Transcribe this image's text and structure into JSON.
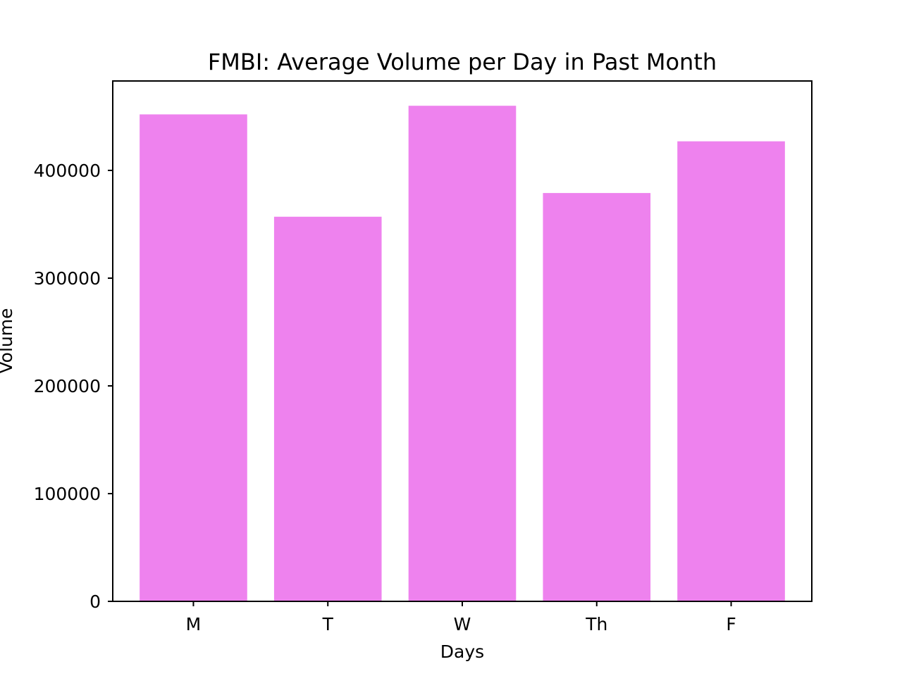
{
  "chart_data": {
    "type": "bar",
    "title": "FMBI: Average Volume per Day in Past Month",
    "xlabel": "Days",
    "ylabel": "Volume",
    "categories": [
      "M",
      "T",
      "W",
      "Th",
      "F"
    ],
    "values": [
      452000,
      357000,
      460000,
      379000,
      427000
    ],
    "ylim": [
      0,
      483000
    ],
    "yticks": [
      0,
      100000,
      200000,
      300000,
      400000
    ],
    "ytick_labels": [
      "0",
      "100000",
      "200000",
      "300000",
      "400000"
    ],
    "bar_color": "#ee82ee",
    "grid": false,
    "legend": "none"
  }
}
